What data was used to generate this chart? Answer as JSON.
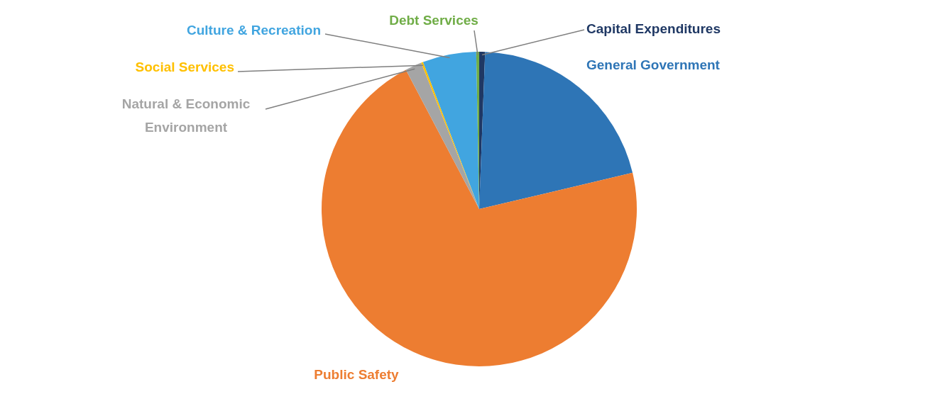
{
  "chart_data": {
    "type": "pie",
    "categories": [
      "Capital Expenditures",
      "General Government",
      "Public Safety",
      "Natural & Economic Environment",
      "Social Services",
      "Culture & Recreation",
      "Debt Services"
    ],
    "values": [
      0.6,
      20.7,
      71.0,
      1.7,
      0.2,
      5.5,
      0.3
    ],
    "colors": [
      "#1f3864",
      "#2e75b6",
      "#ed7d31",
      "#a5a5a5",
      "#ffc000",
      "#41a5e0",
      "#70ad47"
    ],
    "legend": false
  }
}
